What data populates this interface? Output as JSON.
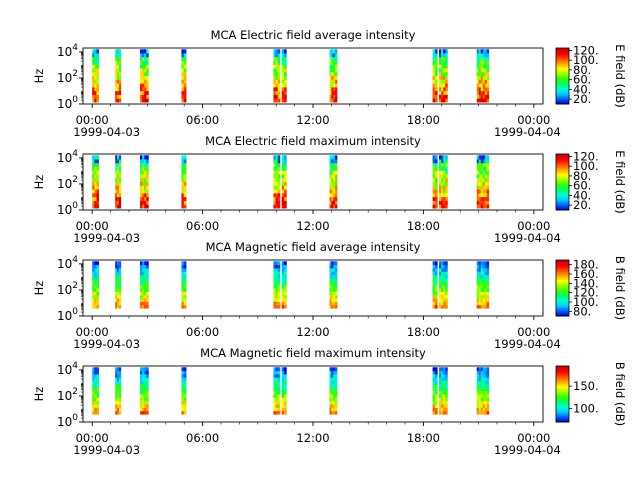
{
  "colors": {
    "spectrum": [
      "#0000cc",
      "#0066ff",
      "#00ccff",
      "#00ffcc",
      "#00ff66",
      "#33ff00",
      "#99ff00",
      "#ffff00",
      "#ffaa00",
      "#ff5500",
      "#ff0000",
      "#cc0000"
    ]
  },
  "chart_data": [
    {
      "type": "heatmap",
      "title": "MCA  Electric field average intensity",
      "ylabel": "Hz",
      "colorbar_label": "E field (dB)",
      "colorbar_ticks": [
        "20.",
        "40.",
        "60.",
        "80.",
        "100.",
        "120."
      ],
      "colorbar_range": [
        10,
        125
      ],
      "y_ticks": [
        {
          "base": "10",
          "exp": "0"
        },
        {
          "base": "10",
          "exp": "2"
        },
        {
          "base": "10",
          "exp": "4"
        }
      ],
      "x_ticks": [
        "00:00",
        "06:00",
        "12:00",
        "18:00",
        "00:00"
      ],
      "x_dates": [
        "1999-04-03",
        "1999-04-04"
      ],
      "xlim_hours": [
        -0.5,
        24.5
      ],
      "ylim_log10": [
        0,
        4.3
      ],
      "bursts_hours": [
        [
          0.0,
          0.35
        ],
        [
          1.25,
          1.55
        ],
        [
          2.6,
          3.05
        ],
        [
          4.85,
          5.1
        ],
        [
          9.85,
          10.2
        ],
        [
          10.3,
          10.55
        ],
        [
          12.9,
          13.3
        ],
        [
          18.5,
          18.75
        ],
        [
          18.85,
          19.3
        ],
        [
          20.9,
          21.55
        ]
      ],
      "intensity": "electric"
    },
    {
      "type": "heatmap",
      "title": "MCA  Electric field maximum intensity",
      "ylabel": "Hz",
      "colorbar_label": "E field (dB)",
      "colorbar_ticks": [
        "20.",
        "40.",
        "60.",
        "80.",
        "100.",
        "120."
      ],
      "colorbar_range": [
        10,
        125
      ],
      "y_ticks": [
        {
          "base": "10",
          "exp": "0"
        },
        {
          "base": "10",
          "exp": "2"
        },
        {
          "base": "10",
          "exp": "4"
        }
      ],
      "x_ticks": [
        "00:00",
        "06:00",
        "12:00",
        "18:00",
        "00:00"
      ],
      "x_dates": [
        "1999-04-03",
        "1999-04-04"
      ],
      "xlim_hours": [
        -0.5,
        24.5
      ],
      "ylim_log10": [
        0,
        4.3
      ],
      "bursts_hours": [
        [
          0.0,
          0.35
        ],
        [
          1.25,
          1.55
        ],
        [
          2.6,
          3.05
        ],
        [
          4.85,
          5.1
        ],
        [
          9.85,
          10.2
        ],
        [
          10.3,
          10.55
        ],
        [
          12.9,
          13.3
        ],
        [
          18.5,
          18.75
        ],
        [
          18.85,
          19.3
        ],
        [
          20.9,
          21.55
        ]
      ],
      "intensity": "electric"
    },
    {
      "type": "heatmap",
      "title": "MCA  Magnetic field average intensity",
      "ylabel": "Hz",
      "colorbar_label": "B field (dB)",
      "colorbar_ticks": [
        "80.",
        "100.",
        "120.",
        "140.",
        "160.",
        "180."
      ],
      "colorbar_range": [
        70,
        190
      ],
      "y_ticks": [
        {
          "base": "10",
          "exp": "0"
        },
        {
          "base": "10",
          "exp": "2"
        },
        {
          "base": "10",
          "exp": "4"
        }
      ],
      "x_ticks": [
        "00:00",
        "06:00",
        "12:00",
        "18:00",
        "00:00"
      ],
      "x_dates": [
        "1999-04-03",
        "1999-04-04"
      ],
      "xlim_hours": [
        -0.5,
        24.5
      ],
      "ylim_log10": [
        0,
        4.3
      ],
      "bursts_hours": [
        [
          0.0,
          0.35
        ],
        [
          1.25,
          1.55
        ],
        [
          2.6,
          3.05
        ],
        [
          4.85,
          5.1
        ],
        [
          9.85,
          10.2
        ],
        [
          10.3,
          10.55
        ],
        [
          12.9,
          13.3
        ],
        [
          18.5,
          18.75
        ],
        [
          18.85,
          19.3
        ],
        [
          20.9,
          21.55
        ]
      ],
      "intensity": "magnetic"
    },
    {
      "type": "heatmap",
      "title": "MCA  Magnetic field maximum intensity",
      "ylabel": "Hz",
      "colorbar_label": "B field (dB)",
      "colorbar_ticks": [
        "100.",
        "150."
      ],
      "colorbar_range": [
        70,
        195
      ],
      "y_ticks": [
        {
          "base": "10",
          "exp": "0"
        },
        {
          "base": "10",
          "exp": "2"
        },
        {
          "base": "10",
          "exp": "4"
        }
      ],
      "x_ticks": [
        "00:00",
        "06:00",
        "12:00",
        "18:00",
        "00:00"
      ],
      "x_dates": [
        "1999-04-03",
        "1999-04-04"
      ],
      "xlim_hours": [
        -0.5,
        24.5
      ],
      "ylim_log10": [
        0,
        4.3
      ],
      "bursts_hours": [
        [
          0.0,
          0.35
        ],
        [
          1.25,
          1.55
        ],
        [
          2.6,
          3.05
        ],
        [
          4.85,
          5.1
        ],
        [
          9.85,
          10.2
        ],
        [
          10.3,
          10.55
        ],
        [
          12.9,
          13.3
        ],
        [
          18.5,
          18.75
        ],
        [
          18.85,
          19.3
        ],
        [
          20.9,
          21.55
        ]
      ],
      "intensity": "magnetic"
    }
  ]
}
